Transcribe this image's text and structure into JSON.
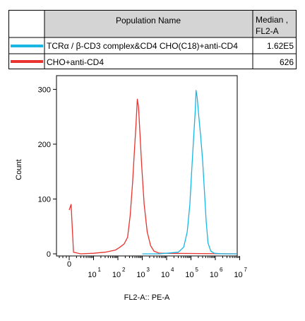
{
  "legend": {
    "header": {
      "population_name": "Population Name",
      "median_line1": "Median ,",
      "median_line2": "FL2-A"
    },
    "rows": [
      {
        "name": "TCRα / β-CD3 complex&CD4 CHO(C18)+anti-CD4",
        "median": "1.62E5",
        "color": "#19b6e3"
      },
      {
        "name": "CHO+anti-CD4",
        "median": "626",
        "color": "#e8332e"
      }
    ]
  },
  "chart_data": {
    "type": "line",
    "xlabel": "FL2-A:: PE-A",
    "ylabel": "Count",
    "x_scale": "log",
    "xlim": [
      1,
      10000000
    ],
    "ylim": [
      0,
      325
    ],
    "y_ticks": [
      0,
      100,
      200,
      300
    ],
    "x_tick_labels": [
      "0",
      "10^1",
      "10^2",
      "10^3",
      "10^4",
      "10^5",
      "10^6",
      "10^7"
    ],
    "series": [
      {
        "name": "TCRα / β-CD3 complex&CD4 CHO(C18)+anti-CD4",
        "color": "#19b6e3",
        "x": [
          1000,
          5000,
          10000,
          30000,
          50000,
          70000,
          90000,
          110000,
          130000,
          150000,
          162000,
          180000,
          210000,
          250000,
          300000,
          350000,
          420000,
          500000,
          650000,
          900000,
          2000000,
          10000000
        ],
        "y": [
          0,
          0,
          1,
          3,
          12,
          40,
          90,
          160,
          215,
          262,
          298,
          285,
          250,
          215,
          170,
          120,
          60,
          20,
          5,
          1,
          0,
          0
        ]
      },
      {
        "name": "CHO+anti-CD4",
        "color": "#e8332e",
        "x": [
          1,
          1.2,
          1.5,
          3,
          10,
          30,
          80,
          120,
          180,
          250,
          320,
          400,
          480,
          560,
          626,
          700,
          800,
          950,
          1200,
          1600,
          2200,
          3000,
          5000,
          10000000
        ],
        "y": [
          80,
          90,
          3,
          0,
          1,
          3,
          7,
          12,
          18,
          30,
          70,
          130,
          190,
          240,
          282,
          268,
          220,
          160,
          90,
          40,
          15,
          5,
          1,
          0
        ]
      }
    ]
  }
}
